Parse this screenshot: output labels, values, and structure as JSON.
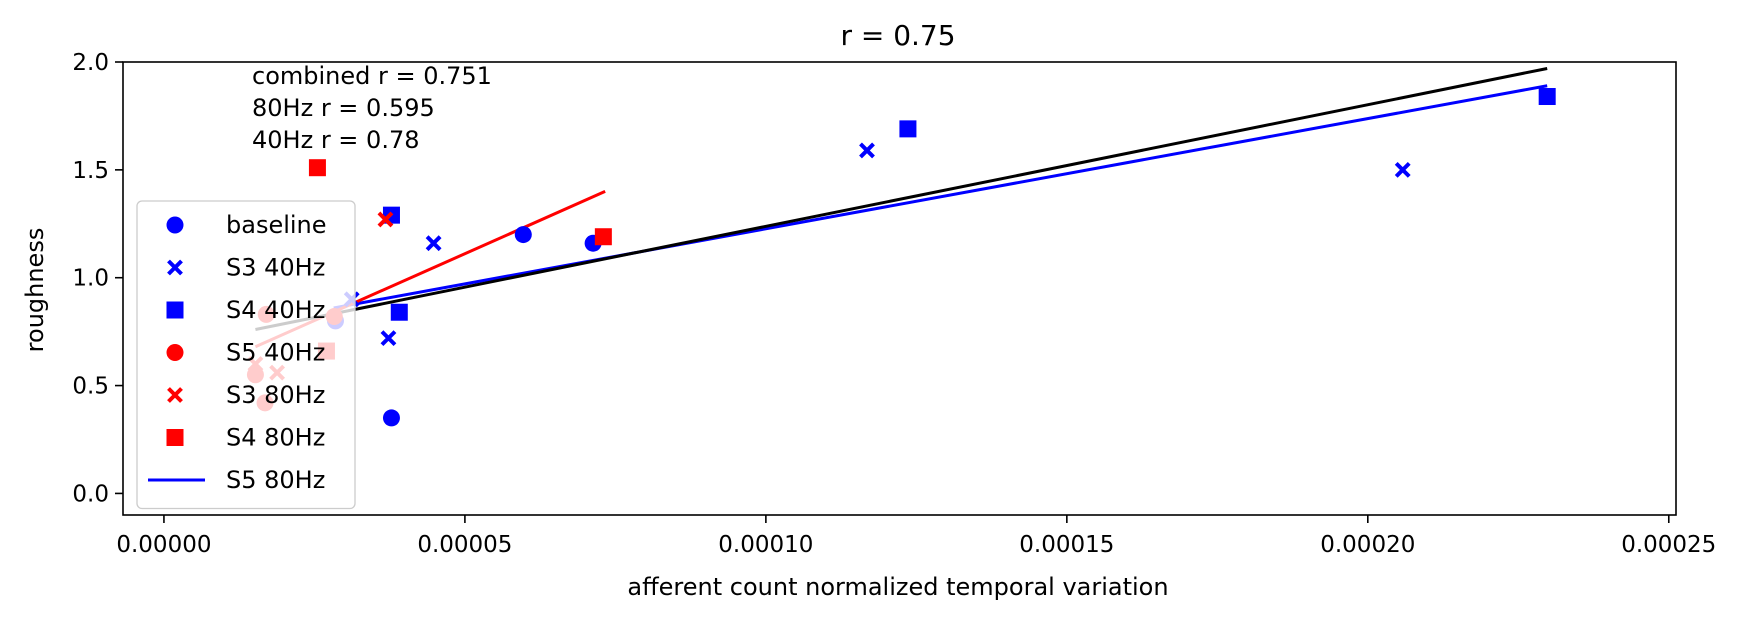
{
  "chart_data": {
    "type": "scatter",
    "title": "r = 0.75",
    "xlabel": "afferent count normalized temporal variation",
    "ylabel": "roughness",
    "xlim": [
      -6.8e-06,
      0.0002512
    ],
    "ylim": [
      -0.1,
      2.0
    ],
    "xticks": [
      0,
      5e-05,
      0.0001,
      0.00015,
      0.0002,
      0.00025
    ],
    "xtick_labels": [
      "0.00000",
      "0.00005",
      "0.00010",
      "0.00015",
      "0.00020",
      "0.00025"
    ],
    "yticks": [
      0,
      0.5,
      1.0,
      1.5,
      2.0
    ],
    "ytick_labels": [
      "0.0",
      "0.5",
      "1.0",
      "1.5",
      "2.0"
    ],
    "grid": false,
    "legend_position": "left",
    "annotations": [
      "combined r = 0.751",
      "80Hz r = 0.595",
      "40Hz r = 0.78"
    ],
    "series": [
      {
        "name": "baseline",
        "kind": "scatter",
        "marker": "circle",
        "color": "#0000ff",
        "points": [
          [
            2.85e-05,
            0.8
          ],
          [
            3.78e-05,
            0.35
          ],
          [
            5.97e-05,
            1.2
          ],
          [
            7.13e-05,
            1.16
          ]
        ]
      },
      {
        "name": "S3 40Hz",
        "kind": "scatter",
        "marker": "x",
        "color": "#0000ff",
        "points": [
          [
            3.73e-05,
            0.72
          ],
          [
            4.48e-05,
            1.16
          ],
          [
            0.0001168,
            1.59
          ],
          [
            0.0002058,
            1.5
          ],
          [
            3.12e-05,
            0.9
          ]
        ]
      },
      {
        "name": "S4 40Hz",
        "kind": "scatter",
        "marker": "square",
        "color": "#0000ff",
        "points": [
          [
            3.78e-05,
            1.29
          ],
          [
            3.91e-05,
            0.84
          ],
          [
            0.0001236,
            1.69
          ],
          [
            0.0002298,
            1.84
          ]
        ]
      },
      {
        "name": "S5 40Hz",
        "kind": "scatter",
        "marker": "circle",
        "color": "#ff0000",
        "points": [
          [
            1.68e-05,
            0.42
          ],
          [
            1.52e-05,
            0.55
          ],
          [
            1.7e-05,
            0.83
          ],
          [
            2.83e-05,
            0.82
          ]
        ]
      },
      {
        "name": "S3 80Hz",
        "kind": "scatter",
        "marker": "x",
        "color": "#ff0000",
        "points": [
          [
            1.52e-05,
            0.6
          ],
          [
            1.88e-05,
            0.56
          ],
          [
            3.68e-05,
            1.27
          ]
        ]
      },
      {
        "name": "S4 80Hz",
        "kind": "scatter",
        "marker": "square",
        "color": "#ff0000",
        "points": [
          [
            2.55e-05,
            1.51
          ],
          [
            2.7e-05,
            0.66
          ],
          [
            7.3e-05,
            1.19
          ]
        ]
      },
      {
        "name": "S5 80Hz",
        "kind": "line",
        "color": "#0000ff",
        "points": [
          [
            2.82e-05,
            0.86
          ],
          [
            0.0002298,
            1.89
          ]
        ]
      },
      {
        "kind": "line",
        "color": "#ff0000",
        "points": [
          [
            1.52e-05,
            0.68
          ],
          [
            7.33e-05,
            1.4
          ]
        ]
      },
      {
        "kind": "line",
        "color": "#000000",
        "points": [
          [
            1.52e-05,
            0.76
          ],
          [
            0.0002298,
            1.97
          ]
        ]
      }
    ]
  }
}
